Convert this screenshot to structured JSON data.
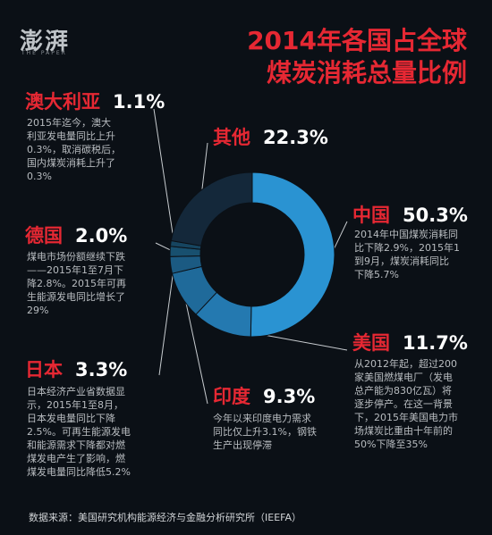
{
  "logo": {
    "text": "澎湃",
    "sub": "THE PAPER"
  },
  "title": {
    "line1": "2014年各国占全球",
    "line2": "煤炭消耗总量比例"
  },
  "chart_data": {
    "type": "pie",
    "title": "2014年各国占全球煤炭消耗总量比例",
    "categories": [
      "中国",
      "美国",
      "印度",
      "日本",
      "德国",
      "澳大利亚",
      "其他"
    ],
    "values": [
      50.3,
      11.7,
      9.3,
      3.3,
      2.0,
      1.1,
      22.3
    ],
    "value_labels": [
      "50.3%",
      "11.7%",
      "9.3%",
      "3.3%",
      "2.0%",
      "1.1%",
      "22.3%"
    ],
    "colors": [
      "#2a93d2",
      "#2479b0",
      "#1f6a9a",
      "#1b5a82",
      "#18506f",
      "#164560",
      "#14283a"
    ],
    "donut": true
  },
  "annotations": {
    "australia": {
      "name": "澳大利亚",
      "pct": "1.1%",
      "desc": [
        "2015年迄今，澳大",
        "利亚发电量同比上升",
        "0.3%，取消碳税后，",
        "国内煤炭消耗上升了",
        "0.3%"
      ]
    },
    "germany": {
      "name": "德国",
      "pct": "2.0%",
      "desc": [
        "煤电市场份额继续下跌",
        "——2015年1至7月下",
        "降2.8%。2015年可再",
        "生能源发电同比增长了",
        "29%"
      ]
    },
    "japan": {
      "name": "日本",
      "pct": "3.3%",
      "desc": [
        "日本经济产业省数据显",
        "示，2015年1至8月，",
        "日本发电量同比下降",
        "2.5%。可再生能源发电",
        "和能源需求下降都对燃",
        "煤发电产生了影响，燃",
        "煤发电量同比降低5.2%"
      ]
    },
    "others": {
      "name": "其他",
      "pct": "22.3%"
    },
    "china": {
      "name": "中国",
      "pct": "50.3%",
      "desc": [
        "2014年中国煤炭消耗同",
        "比下降2.9%，2015年1",
        "到9月，煤炭消耗同比",
        "下降5.7%"
      ]
    },
    "usa": {
      "name": "美国",
      "pct": "11.7%",
      "desc": [
        "从2012年起，超过200",
        "家美国燃煤电厂（发电",
        "总产能为830亿瓦）将",
        "逐步停产。在这一背景",
        "下，2015年美国电力市",
        "场煤炭比重由十年前的",
        "50%下降至35%"
      ]
    },
    "india": {
      "name": "印度",
      "pct": "9.3%",
      "desc": [
        "今年以来印度电力需求",
        "同比仅上升3.1%，钢铁",
        "生产出现停滞"
      ]
    }
  },
  "source": "数据来源：美国研究机构能源经济与金融分析研究所（IEEFA）"
}
